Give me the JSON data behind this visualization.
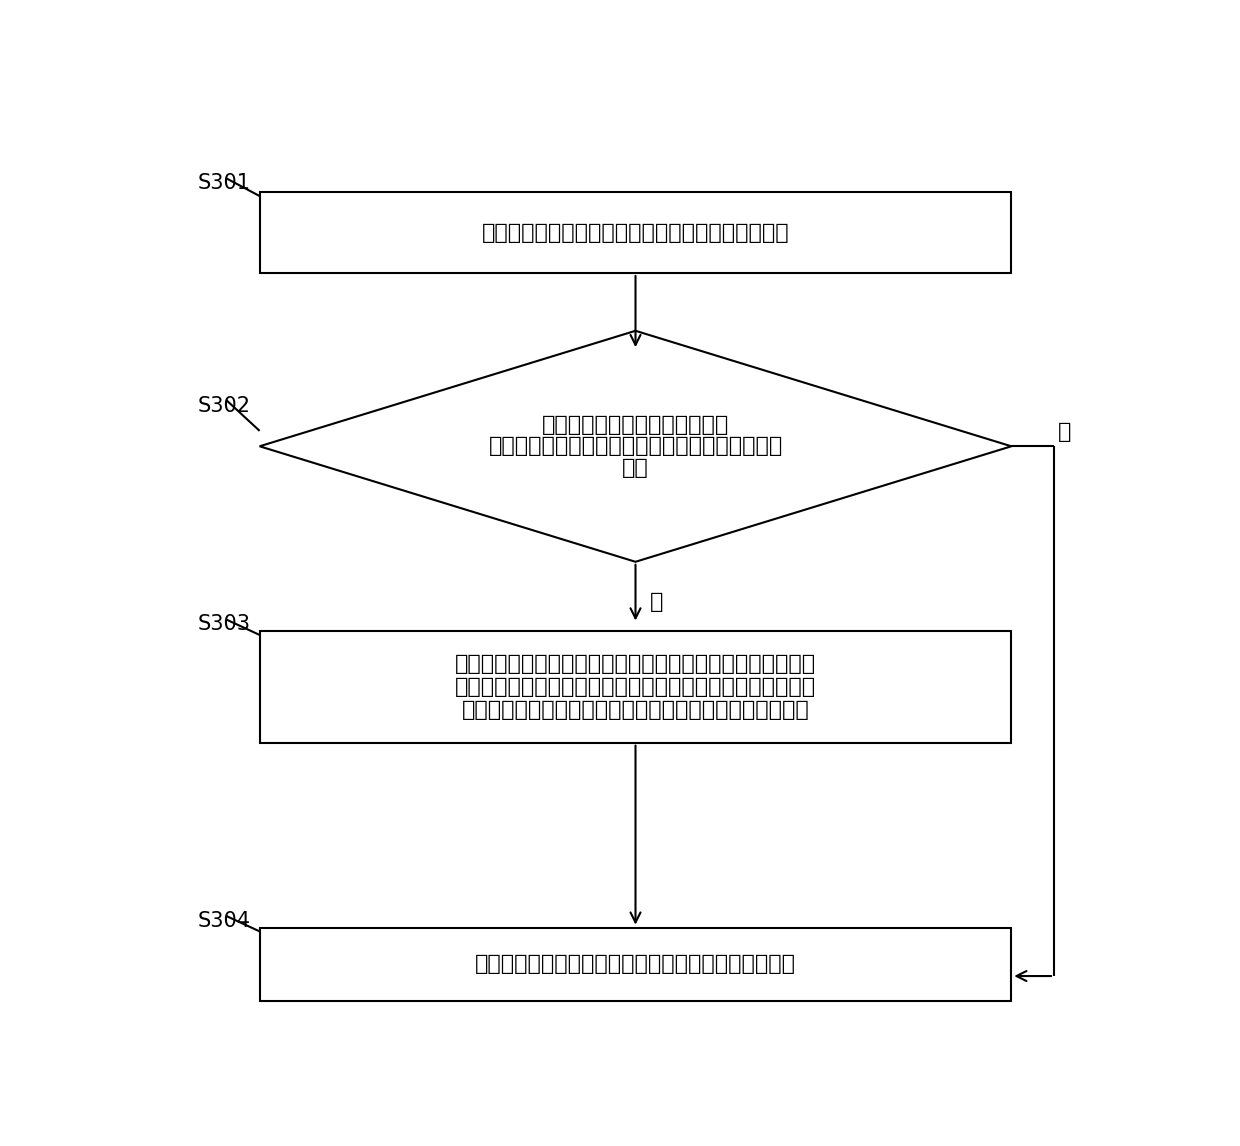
{
  "bg_color": "#ffffff",
  "line_color": "#000000",
  "text_color": "#000000",
  "font_size_main": 16,
  "font_size_label": 15,
  "step_labels": [
    "S301",
    "S302",
    "S303",
    "S304"
  ],
  "box1_text": "通过明场识别技术对明场图像中的明场目标进行识别",
  "diamond_line1": "显微荧光图像中对应明场图像检",
  "diamond_line2": "测到的各个检测目标的位置信息、尺寸信息的区域",
  "diamond_line3": "为空",
  "box3_line1": "依据采用得到的明场图像识别技术检测到的每个检测目标的位",
  "box3_line2": "置、尺寸信息在所述显微荧光图像中相对应的区域，由所述显",
  "box3_line3": "微荧光图像中确定对应的每个检测目标的显微荧光图像区域",
  "box4_text": "对所述显微荧光图像进行高斯平滑滤波并执行后续操作",
  "yes_label": "是",
  "no_label": "否"
}
